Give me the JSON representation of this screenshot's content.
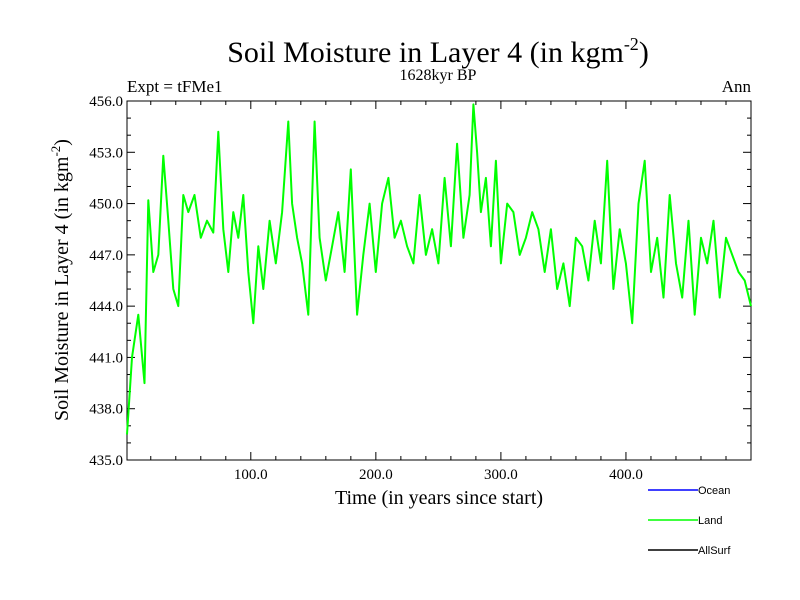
{
  "chart_data": {
    "type": "line",
    "title_main": "Soil Moisture in Layer 4 (in kgm",
    "title_sup": "-2",
    "title_close": ")",
    "subtitle": "1628kyr BP",
    "left_label": "Expt = tFMe1",
    "right_label": "Ann",
    "xlabel": "Time (in years since start)",
    "ylabel_main": "Soil Moisture in Layer 4 (in kgm",
    "ylabel_sup": "-2",
    "ylabel_close": ")",
    "xlim": [
      1,
      500
    ],
    "ylim": [
      435.0,
      456.0
    ],
    "xticks": [
      100,
      200,
      300,
      400
    ],
    "xtick_labels": [
      "100.0",
      "200.0",
      "300.0",
      "400.0"
    ],
    "yticks": [
      435,
      438,
      441,
      444,
      447,
      450,
      453,
      456
    ],
    "ytick_labels": [
      "435.0",
      "438.0",
      "441.0",
      "444.0",
      "447.0",
      "450.0",
      "453.0",
      "456.0"
    ],
    "legend": [
      {
        "name": "Ocean",
        "color": "#0000ff"
      },
      {
        "name": "Land",
        "color": "#00ff00"
      },
      {
        "name": "AllSurf",
        "color": "#000000"
      }
    ],
    "series": [
      {
        "name": "Land",
        "color": "#00ff00",
        "x": [
          1,
          5,
          10,
          15,
          18,
          22,
          26,
          30,
          34,
          38,
          42,
          46,
          50,
          55,
          60,
          65,
          70,
          74,
          78,
          82,
          86,
          90,
          94,
          98,
          102,
          106,
          110,
          115,
          120,
          125,
          130,
          133,
          137,
          141,
          146,
          151,
          155,
          160,
          165,
          170,
          175,
          180,
          185,
          190,
          195,
          200,
          205,
          210,
          215,
          220,
          225,
          230,
          235,
          240,
          245,
          250,
          255,
          260,
          265,
          270,
          275,
          278,
          281,
          284,
          288,
          292,
          296,
          300,
          305,
          310,
          315,
          320,
          325,
          330,
          335,
          340,
          345,
          350,
          355,
          360,
          365,
          370,
          375,
          380,
          385,
          390,
          395,
          400,
          405,
          410,
          415,
          420,
          425,
          430,
          435,
          440,
          445,
          450,
          455,
          460,
          465,
          470,
          475,
          480,
          485,
          490,
          495,
          500
        ],
        "values": [
          436.5,
          441,
          443.5,
          439.5,
          450.2,
          446,
          447,
          452.8,
          449,
          445,
          444,
          450.5,
          449.5,
          450.5,
          448,
          449,
          448.3,
          454.2,
          448.5,
          446,
          449.5,
          448,
          450.5,
          446,
          443,
          447.5,
          445,
          449,
          446.5,
          449.5,
          454.8,
          450,
          448,
          446.5,
          443.5,
          454.8,
          448,
          445.5,
          447.5,
          449.5,
          446,
          452,
          443.5,
          447,
          450,
          446,
          450,
          451.5,
          448,
          449,
          447.5,
          446.5,
          450.5,
          447,
          448.5,
          446.5,
          451.5,
          447.5,
          453.5,
          448,
          450.5,
          455.8,
          453,
          449.5,
          451.5,
          447.5,
          452.5,
          446.5,
          450,
          449.5,
          447,
          448,
          449.5,
          448.5,
          446,
          448.5,
          445,
          446.5,
          444,
          448,
          447.5,
          445.5,
          449,
          446.5,
          452.5,
          445,
          448.5,
          446.5,
          443,
          450,
          452.5,
          446,
          448,
          444.5,
          450.5,
          446.5,
          444.5,
          449,
          443.5,
          448,
          446.5,
          449,
          444.5,
          448,
          447,
          446,
          445.5,
          444
        ]
      }
    ]
  }
}
